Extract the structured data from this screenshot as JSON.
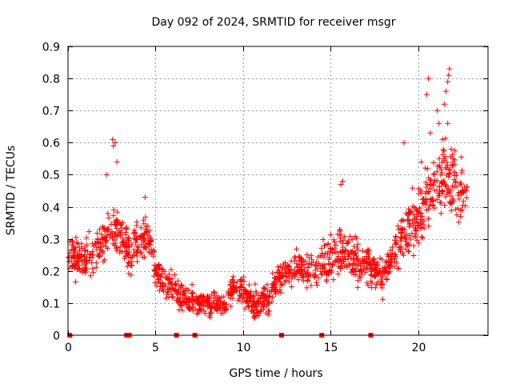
{
  "chart_data": {
    "type": "scatter",
    "title": "Day 092 of 2024, SRMTID for receiver msgr",
    "xlabel": "GPS time / hours",
    "ylabel": "SRMTID / TECUs",
    "xlim": [
      0,
      24
    ],
    "ylim": [
      0,
      0.9
    ],
    "xticks": [
      0,
      5,
      10,
      15,
      20
    ],
    "yticks": [
      0,
      0.1,
      0.2,
      0.3,
      0.4,
      0.5,
      0.6,
      0.7,
      0.8,
      0.9
    ],
    "xtick_labels": [
      "0",
      "5",
      "10",
      "15",
      "20"
    ],
    "ytick_labels": [
      "0",
      "0.1",
      "0.2",
      "0.3",
      "0.4",
      "0.5",
      "0.6",
      "0.7",
      "0.8",
      "0.9"
    ],
    "grid": true,
    "marker": "plus",
    "color": "#ff0000",
    "trend": [
      {
        "x": 0.0,
        "y": 0.25
      },
      {
        "x": 0.5,
        "y": 0.24
      },
      {
        "x": 1.0,
        "y": 0.23
      },
      {
        "x": 1.5,
        "y": 0.26
      },
      {
        "x": 2.0,
        "y": 0.29
      },
      {
        "x": 2.5,
        "y": 0.33
      },
      {
        "x": 3.0,
        "y": 0.31
      },
      {
        "x": 3.5,
        "y": 0.25
      },
      {
        "x": 4.0,
        "y": 0.29
      },
      {
        "x": 4.5,
        "y": 0.31
      },
      {
        "x": 5.0,
        "y": 0.2
      },
      {
        "x": 5.5,
        "y": 0.17
      },
      {
        "x": 6.0,
        "y": 0.15
      },
      {
        "x": 6.5,
        "y": 0.12
      },
      {
        "x": 7.0,
        "y": 0.11
      },
      {
        "x": 7.5,
        "y": 0.1
      },
      {
        "x": 8.0,
        "y": 0.1
      },
      {
        "x": 8.5,
        "y": 0.1
      },
      {
        "x": 9.0,
        "y": 0.09
      },
      {
        "x": 9.5,
        "y": 0.16
      },
      {
        "x": 10.0,
        "y": 0.14
      },
      {
        "x": 10.5,
        "y": 0.1
      },
      {
        "x": 11.0,
        "y": 0.1
      },
      {
        "x": 11.5,
        "y": 0.12
      },
      {
        "x": 12.0,
        "y": 0.18
      },
      {
        "x": 12.5,
        "y": 0.2
      },
      {
        "x": 13.0,
        "y": 0.21
      },
      {
        "x": 13.5,
        "y": 0.21
      },
      {
        "x": 14.0,
        "y": 0.2
      },
      {
        "x": 14.5,
        "y": 0.22
      },
      {
        "x": 15.0,
        "y": 0.24
      },
      {
        "x": 15.5,
        "y": 0.27
      },
      {
        "x": 16.0,
        "y": 0.26
      },
      {
        "x": 16.5,
        "y": 0.23
      },
      {
        "x": 17.0,
        "y": 0.22
      },
      {
        "x": 17.5,
        "y": 0.21
      },
      {
        "x": 18.0,
        "y": 0.18
      },
      {
        "x": 18.5,
        "y": 0.25
      },
      {
        "x": 19.0,
        "y": 0.3
      },
      {
        "x": 19.5,
        "y": 0.33
      },
      {
        "x": 20.0,
        "y": 0.37
      },
      {
        "x": 20.5,
        "y": 0.42
      },
      {
        "x": 21.0,
        "y": 0.46
      },
      {
        "x": 21.5,
        "y": 0.5
      },
      {
        "x": 22.0,
        "y": 0.48
      },
      {
        "x": 22.5,
        "y": 0.44
      },
      {
        "x": 22.8,
        "y": 0.42
      }
    ],
    "spread": [
      {
        "x": 0.0,
        "s": 0.07
      },
      {
        "x": 2.5,
        "s": 0.09
      },
      {
        "x": 5.0,
        "s": 0.06
      },
      {
        "x": 8.0,
        "s": 0.04
      },
      {
        "x": 10.0,
        "s": 0.05
      },
      {
        "x": 13.0,
        "s": 0.06
      },
      {
        "x": 16.0,
        "s": 0.09
      },
      {
        "x": 18.0,
        "s": 0.07
      },
      {
        "x": 20.0,
        "s": 0.11
      },
      {
        "x": 22.0,
        "s": 0.13
      },
      {
        "x": 22.8,
        "s": 0.1
      }
    ],
    "outliers": [
      {
        "x": 2.55,
        "y": 0.61
      },
      {
        "x": 2.6,
        "y": 0.59
      },
      {
        "x": 2.7,
        "y": 0.6
      },
      {
        "x": 2.8,
        "y": 0.54
      },
      {
        "x": 2.2,
        "y": 0.5
      },
      {
        "x": 4.4,
        "y": 0.43
      },
      {
        "x": 15.7,
        "y": 0.48
      },
      {
        "x": 15.6,
        "y": 0.47
      },
      {
        "x": 19.2,
        "y": 0.6
      },
      {
        "x": 20.6,
        "y": 0.8
      },
      {
        "x": 20.5,
        "y": 0.75
      },
      {
        "x": 21.6,
        "y": 0.76
      },
      {
        "x": 21.7,
        "y": 0.79
      },
      {
        "x": 21.8,
        "y": 0.83
      },
      {
        "x": 21.75,
        "y": 0.81
      },
      {
        "x": 21.5,
        "y": 0.72
      },
      {
        "x": 21.7,
        "y": 0.66
      },
      {
        "x": 21.1,
        "y": 0.7
      },
      {
        "x": 20.7,
        "y": 0.63
      },
      {
        "x": 21.2,
        "y": 0.66
      },
      {
        "x": 21.9,
        "y": 0.58
      },
      {
        "x": 22.0,
        "y": 0.55
      },
      {
        "x": 21.4,
        "y": 0.61
      },
      {
        "x": 20.2,
        "y": 0.54
      }
    ],
    "zero_points": [
      0.1,
      3.35,
      3.5,
      6.2,
      7.25,
      12.2,
      14.5,
      17.3
    ]
  }
}
